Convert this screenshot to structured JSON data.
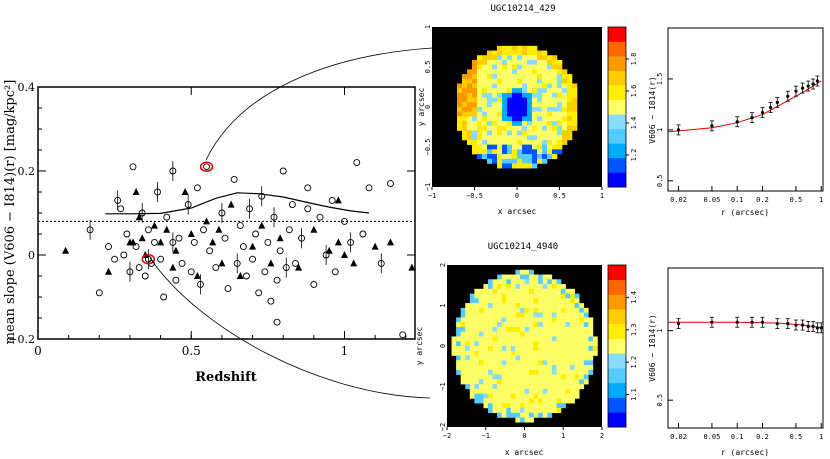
{
  "chart_data": [
    {
      "type": "scatter",
      "xlabel": "Redshift",
      "ylabel": "mean slope (V606 − I814)(r) [mag/kpc²]",
      "xlim": [
        0,
        1.23
      ],
      "ylim": [
        -0.2,
        0.4
      ],
      "xticks": [
        "0",
        "0.5",
        "1"
      ],
      "yticks": [
        "−0.2",
        "0",
        "0.2",
        "0.4"
      ],
      "reference_line_y": 0.08,
      "trend_line": {
        "x": [
          0.22,
          0.3,
          0.4,
          0.5,
          0.58,
          0.65,
          0.72,
          0.8,
          0.88,
          0.95,
          1.02,
          1.08
        ],
        "y": [
          0.098,
          0.098,
          0.099,
          0.112,
          0.135,
          0.148,
          0.146,
          0.138,
          0.125,
          0.114,
          0.105,
          0.1
        ]
      },
      "series": [
        {
          "marker": "open-circle",
          "points": [
            [
              0.17,
              0.06
            ],
            [
              0.2,
              -0.09
            ],
            [
              0.23,
              0.02
            ],
            [
              0.25,
              -0.01
            ],
            [
              0.26,
              0.13
            ],
            [
              0.27,
              0.11
            ],
            [
              0.28,
              0.0
            ],
            [
              0.29,
              0.05
            ],
            [
              0.3,
              -0.04
            ],
            [
              0.31,
              0.21
            ],
            [
              0.32,
              0.02
            ],
            [
              0.33,
              -0.03
            ],
            [
              0.34,
              0.1
            ],
            [
              0.35,
              -0.05
            ],
            [
              0.36,
              0.06
            ],
            [
              0.38,
              0.03
            ],
            [
              0.39,
              0.15
            ],
            [
              0.4,
              -0.01
            ],
            [
              0.41,
              -0.1
            ],
            [
              0.42,
              0.09
            ],
            [
              0.44,
              0.2
            ],
            [
              0.45,
              -0.06
            ],
            [
              0.46,
              0.04
            ],
            [
              0.47,
              -0.02
            ],
            [
              0.49,
              0.12
            ],
            [
              0.5,
              -0.04
            ],
            [
              0.51,
              0.03
            ],
            [
              0.52,
              0.16
            ],
            [
              0.53,
              -0.07
            ],
            [
              0.54,
              0.06
            ],
            [
              0.56,
              0.01
            ],
            [
              0.58,
              -0.03
            ],
            [
              0.6,
              0.1
            ],
            [
              0.61,
              0.04
            ],
            [
              0.62,
              -0.08
            ],
            [
              0.64,
              0.18
            ],
            [
              0.65,
              -0.02
            ],
            [
              0.66,
              0.07
            ],
            [
              0.67,
              0.02
            ],
            [
              0.68,
              -0.05
            ],
            [
              0.69,
              0.11
            ],
            [
              0.7,
              -0.01
            ],
            [
              0.71,
              0.05
            ],
            [
              0.72,
              -0.09
            ],
            [
              0.73,
              0.14
            ],
            [
              0.74,
              -0.04
            ],
            [
              0.75,
              0.03
            ],
            [
              0.76,
              -0.11
            ],
            [
              0.77,
              0.09
            ],
            [
              0.78,
              -0.06
            ],
            [
              0.79,
              0.01
            ],
            [
              0.8,
              0.2
            ],
            [
              0.81,
              -0.03
            ],
            [
              0.82,
              0.06
            ],
            [
              0.83,
              0.12
            ],
            [
              0.84,
              -0.02
            ],
            [
              0.86,
              0.04
            ],
            [
              0.88,
              0.16
            ],
            [
              0.9,
              -0.07
            ],
            [
              0.92,
              0.09
            ],
            [
              0.94,
              0.0
            ],
            [
              0.96,
              0.13
            ],
            [
              0.97,
              -0.04
            ],
            [
              1.0,
              0.08
            ],
            [
              1.02,
              0.03
            ],
            [
              1.04,
              0.22
            ],
            [
              1.06,
              0.05
            ],
            [
              1.08,
              0.16
            ],
            [
              1.12,
              -0.02
            ],
            [
              1.15,
              0.17
            ],
            [
              1.19,
              -0.19
            ],
            [
              0.78,
              -0.16
            ],
            [
              0.44,
              0.03
            ],
            [
              0.37,
              -0.02
            ],
            [
              0.88,
              0.11
            ],
            [
              0.55,
              0.21
            ],
            [
              0.36,
              -0.01
            ]
          ]
        },
        {
          "marker": "filled-triangle",
          "points": [
            [
              0.09,
              0.01
            ],
            [
              0.23,
              -0.04
            ],
            [
              0.3,
              0.03
            ],
            [
              0.31,
              0.03
            ],
            [
              0.32,
              0.15
            ],
            [
              0.34,
              0.04
            ],
            [
              0.35,
              0.0
            ],
            [
              0.38,
              0.07
            ],
            [
              0.4,
              0.03
            ],
            [
              0.42,
              0.06
            ],
            [
              0.44,
              -0.03
            ],
            [
              0.45,
              0.01
            ],
            [
              0.48,
              0.15
            ],
            [
              0.5,
              0.05
            ],
            [
              0.52,
              -0.05
            ],
            [
              0.55,
              0.08
            ],
            [
              0.57,
              0.03
            ],
            [
              0.59,
              0.06
            ],
            [
              0.6,
              -0.02
            ],
            [
              0.63,
              0.12
            ],
            [
              0.66,
              -0.05
            ],
            [
              0.7,
              0.02
            ],
            [
              0.73,
              0.07
            ],
            [
              0.76,
              -0.02
            ],
            [
              0.79,
              0.04
            ],
            [
              0.85,
              -0.03
            ],
            [
              0.9,
              0.06
            ],
            [
              0.95,
              0.01
            ],
            [
              0.98,
              0.03
            ],
            [
              1.0,
              0.0
            ],
            [
              1.03,
              -0.02
            ],
            [
              1.1,
              0.02
            ],
            [
              1.15,
              0.03
            ],
            [
              1.22,
              -0.03
            ],
            [
              0.98,
              0.13
            ],
            [
              0.33,
              0.09
            ]
          ]
        }
      ],
      "highlighted": [
        [
          0.55,
          0.21
        ],
        [
          0.36,
          -0.01
        ]
      ]
    },
    {
      "type": "heatmap",
      "title": "UGC10214_429",
      "xlabel": "x arcsec",
      "ylabel": "y arcsec",
      "xticks": [
        "−1",
        "−0.5",
        "0",
        "0.5",
        "1"
      ],
      "yticks": [
        "−1",
        "−0.5",
        "0",
        "0.5",
        "1"
      ],
      "colorbar_ticks": [
        "1.2",
        "1.4",
        "1.6",
        "1.8"
      ],
      "colorbar_colors": [
        "#0000ff",
        "#0055ff",
        "#00aaff",
        "#55ccff",
        "#88ddff",
        "#ffff66",
        "#ffee00",
        "#ffcc00",
        "#ff9900",
        "#ff6600",
        "#ff0000"
      ]
    },
    {
      "type": "line",
      "ylabel": "V606 − I814(r)",
      "xlabel": "r (arcsec)",
      "xticks": [
        "0.02",
        "0.05",
        "0.1",
        "0.2",
        "0.5",
        "1"
      ],
      "yticks": [
        "0.5",
        "1",
        "1.5"
      ],
      "ylim": [
        0.4,
        2.0
      ],
      "points": [
        [
          0.02,
          1.0
        ],
        [
          0.05,
          1.04
        ],
        [
          0.1,
          1.08
        ],
        [
          0.15,
          1.12
        ],
        [
          0.2,
          1.17
        ],
        [
          0.25,
          1.22
        ],
        [
          0.3,
          1.27
        ],
        [
          0.4,
          1.33
        ],
        [
          0.5,
          1.38
        ],
        [
          0.6,
          1.41
        ],
        [
          0.7,
          1.43
        ],
        [
          0.8,
          1.45
        ],
        [
          0.9,
          1.48
        ]
      ],
      "fit": [
        [
          0.015,
          0.98
        ],
        [
          0.05,
          1.02
        ],
        [
          0.1,
          1.07
        ],
        [
          0.2,
          1.15
        ],
        [
          0.3,
          1.23
        ],
        [
          0.5,
          1.33
        ],
        [
          0.7,
          1.4
        ],
        [
          1.0,
          1.48
        ]
      ]
    },
    {
      "type": "heatmap",
      "title": "UGC10214_4940",
      "xlabel": "x arcsec",
      "ylabel": "y arcsec",
      "xticks": [
        "−2",
        "−1",
        "0",
        "1",
        "2"
      ],
      "yticks": [
        "−2",
        "−1",
        "0",
        "1",
        "2"
      ],
      "colorbar_ticks": [
        "1.1",
        "1.2",
        "1.3",
        "1.4"
      ],
      "colorbar_colors": [
        "#0000ff",
        "#0055ff",
        "#00aaff",
        "#55ccff",
        "#88ddff",
        "#ffff66",
        "#ffee00",
        "#ffcc00",
        "#ff9900",
        "#ff6600",
        "#ff0000"
      ]
    },
    {
      "type": "line",
      "ylabel": "V606 − I814(r)",
      "xlabel": "r (arcsec)",
      "xticks": [
        "0.02",
        "0.05",
        "0.1",
        "0.2",
        "0.5",
        "1"
      ],
      "yticks": [
        "0.5",
        "1"
      ],
      "ylim": [
        0.3,
        1.45
      ],
      "points": [
        [
          0.02,
          1.05
        ],
        [
          0.05,
          1.06
        ],
        [
          0.1,
          1.06
        ],
        [
          0.15,
          1.06
        ],
        [
          0.2,
          1.06
        ],
        [
          0.3,
          1.05
        ],
        [
          0.4,
          1.05
        ],
        [
          0.5,
          1.04
        ],
        [
          0.6,
          1.04
        ],
        [
          0.7,
          1.03
        ],
        [
          0.8,
          1.03
        ],
        [
          0.9,
          1.02
        ],
        [
          1.0,
          1.02
        ]
      ],
      "fit": [
        [
          0.015,
          1.06
        ],
        [
          0.1,
          1.06
        ],
        [
          0.3,
          1.055
        ],
        [
          0.6,
          1.04
        ],
        [
          1.0,
          1.02
        ]
      ]
    }
  ]
}
